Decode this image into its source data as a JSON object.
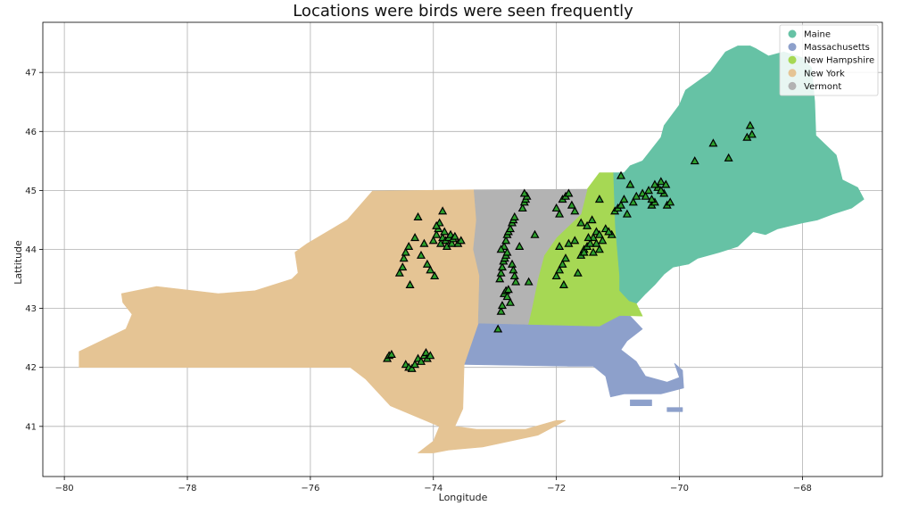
{
  "chart_data": {
    "type": "scatter",
    "title": "Locations were birds were seen frequently",
    "xlabel": "Longitude",
    "ylabel": "Lattitude",
    "xlim": [
      -80.35,
      -66.7
    ],
    "ylim": [
      40.15,
      47.85
    ],
    "xticks": [
      -80,
      -78,
      -76,
      -74,
      -72,
      -70,
      -68
    ],
    "yticks": [
      41,
      42,
      43,
      44,
      45,
      46,
      47
    ],
    "xtick_labels": [
      "−80",
      "−78",
      "−76",
      "−74",
      "−72",
      "−70",
      "−68"
    ],
    "ytick_labels": [
      "41",
      "42",
      "43",
      "44",
      "45",
      "46",
      "47"
    ],
    "grid": true,
    "legend_position": "top-right",
    "regions": [
      {
        "name": "Maine",
        "color": "#66c2a5",
        "polygons": [
          [
            [
              -71.08,
              45.3
            ],
            [
              -70.9,
              45.3
            ],
            [
              -70.8,
              45.42
            ],
            [
              -70.6,
              45.5
            ],
            [
              -70.3,
              45.9
            ],
            [
              -70.25,
              46.1
            ],
            [
              -70.0,
              46.45
            ],
            [
              -69.9,
              46.7
            ],
            [
              -69.5,
              47.0
            ],
            [
              -69.25,
              47.35
            ],
            [
              -69.05,
              47.45
            ],
            [
              -68.85,
              47.45
            ],
            [
              -68.75,
              47.4
            ],
            [
              -68.55,
              47.28
            ],
            [
              -68.3,
              47.35
            ],
            [
              -68.0,
              47.25
            ],
            [
              -67.85,
              47.08
            ],
            [
              -67.8,
              46.5
            ],
            [
              -67.78,
              45.93
            ],
            [
              -67.45,
              45.6
            ],
            [
              -67.35,
              45.18
            ],
            [
              -67.1,
              45.05
            ],
            [
              -67.0,
              44.85
            ],
            [
              -67.2,
              44.7
            ],
            [
              -67.5,
              44.6
            ],
            [
              -67.75,
              44.5
            ],
            [
              -68.0,
              44.45
            ],
            [
              -68.4,
              44.35
            ],
            [
              -68.6,
              44.25
            ],
            [
              -68.8,
              44.3
            ],
            [
              -69.05,
              44.05
            ],
            [
              -69.35,
              43.95
            ],
            [
              -69.7,
              43.85
            ],
            [
              -69.85,
              43.75
            ],
            [
              -70.1,
              43.7
            ],
            [
              -70.25,
              43.58
            ],
            [
              -70.4,
              43.4
            ],
            [
              -70.55,
              43.25
            ],
            [
              -70.7,
              43.08
            ],
            [
              -70.82,
              43.12
            ],
            [
              -70.98,
              43.3
            ],
            [
              -70.98,
              43.55
            ],
            [
              -71.05,
              44.4
            ],
            [
              -71.08,
              45.3
            ]
          ]
        ]
      },
      {
        "name": "Massachusetts",
        "color": "#8da0cb",
        "polygons": [
          [
            [
              -73.5,
              42.05
            ],
            [
              -73.27,
              42.75
            ],
            [
              -72.46,
              42.73
            ],
            [
              -71.3,
              42.7
            ],
            [
              -70.97,
              42.88
            ],
            [
              -70.8,
              42.87
            ],
            [
              -70.6,
              42.65
            ],
            [
              -70.85,
              42.45
            ],
            [
              -70.95,
              42.3
            ],
            [
              -70.7,
              42.1
            ],
            [
              -70.55,
              41.85
            ],
            [
              -70.2,
              41.75
            ],
            [
              -70.0,
              41.83
            ],
            [
              -70.08,
              42.07
            ],
            [
              -69.95,
              41.95
            ],
            [
              -69.93,
              41.65
            ],
            [
              -70.3,
              41.55
            ],
            [
              -70.63,
              41.55
            ],
            [
              -70.9,
              41.55
            ],
            [
              -71.12,
              41.5
            ],
            [
              -71.2,
              41.85
            ],
            [
              -71.4,
              42.02
            ],
            [
              -71.8,
              42.02
            ],
            [
              -73.5,
              42.05
            ]
          ]
        ]
      },
      {
        "name": "Massachusetts islands",
        "color": "#8da0cb",
        "polygons": [
          [
            [
              -70.8,
              41.35
            ],
            [
              -70.45,
              41.35
            ],
            [
              -70.45,
              41.45
            ],
            [
              -70.8,
              41.45
            ]
          ],
          [
            [
              -70.2,
              41.25
            ],
            [
              -69.95,
              41.25
            ],
            [
              -69.95,
              41.32
            ],
            [
              -70.2,
              41.32
            ]
          ]
        ]
      },
      {
        "name": "New Hampshire",
        "color": "#a6d854",
        "polygons": [
          [
            [
              -71.5,
              45.02
            ],
            [
              -71.3,
              45.3
            ],
            [
              -71.08,
              45.3
            ],
            [
              -71.05,
              44.4
            ],
            [
              -70.98,
              43.55
            ],
            [
              -70.98,
              43.3
            ],
            [
              -70.82,
              43.12
            ],
            [
              -70.7,
              43.08
            ],
            [
              -70.6,
              42.87
            ],
            [
              -70.97,
              42.88
            ],
            [
              -71.3,
              42.7
            ],
            [
              -72.46,
              42.73
            ],
            [
              -72.4,
              43.0
            ],
            [
              -72.3,
              43.5
            ],
            [
              -72.2,
              43.9
            ],
            [
              -72.0,
              44.2
            ],
            [
              -71.8,
              44.4
            ],
            [
              -71.6,
              44.6
            ],
            [
              -71.5,
              45.02
            ]
          ]
        ]
      },
      {
        "name": "New York",
        "color": "#e5c494",
        "polygons": [
          [
            [
              -79.76,
              42.0
            ],
            [
              -79.76,
              42.27
            ],
            [
              -79.0,
              42.65
            ],
            [
              -78.9,
              42.9
            ],
            [
              -79.05,
              43.1
            ],
            [
              -79.07,
              43.25
            ],
            [
              -78.5,
              43.37
            ],
            [
              -77.5,
              43.25
            ],
            [
              -76.9,
              43.3
            ],
            [
              -76.3,
              43.5
            ],
            [
              -76.2,
              43.6
            ],
            [
              -76.25,
              43.95
            ],
            [
              -76.05,
              44.1
            ],
            [
              -75.4,
              44.5
            ],
            [
              -74.99,
              44.99
            ],
            [
              -73.34,
              45.01
            ],
            [
              -73.3,
              44.5
            ],
            [
              -73.35,
              44.0
            ],
            [
              -73.25,
              43.55
            ],
            [
              -73.27,
              42.75
            ],
            [
              -73.5,
              42.05
            ],
            [
              -73.52,
              41.3
            ],
            [
              -73.65,
              41.0
            ],
            [
              -73.3,
              40.95
            ],
            [
              -72.5,
              40.95
            ],
            [
              -72.0,
              41.1
            ],
            [
              -71.85,
              41.1
            ],
            [
              -72.3,
              40.85
            ],
            [
              -73.2,
              40.65
            ],
            [
              -73.75,
              40.6
            ],
            [
              -74.0,
              40.55
            ],
            [
              -74.25,
              40.55
            ],
            [
              -74.0,
              40.75
            ],
            [
              -73.9,
              41.0
            ],
            [
              -74.7,
              41.35
            ],
            [
              -75.1,
              41.8
            ],
            [
              -75.35,
              42.0
            ],
            [
              -79.76,
              42.0
            ]
          ]
        ]
      },
      {
        "name": "Vermont",
        "color": "#b3b3b3",
        "polygons": [
          [
            [
              -73.34,
              45.01
            ],
            [
              -71.5,
              45.02
            ],
            [
              -71.6,
              44.6
            ],
            [
              -71.8,
              44.4
            ],
            [
              -72.0,
              44.2
            ],
            [
              -72.2,
              43.9
            ],
            [
              -72.3,
              43.5
            ],
            [
              -72.4,
              43.0
            ],
            [
              -72.46,
              42.73
            ],
            [
              -73.27,
              42.75
            ],
            [
              -73.25,
              43.55
            ],
            [
              -73.35,
              44.0
            ],
            [
              -73.3,
              44.5
            ],
            [
              -73.34,
              45.01
            ]
          ]
        ]
      }
    ],
    "legend": [
      {
        "label": "Maine",
        "color": "#66c2a5"
      },
      {
        "label": "Massachusetts",
        "color": "#8da0cb"
      },
      {
        "label": "New Hampshire",
        "color": "#a6d854"
      },
      {
        "label": "New York",
        "color": "#e5c494"
      },
      {
        "label": "Vermont",
        "color": "#b3b3b3"
      }
    ],
    "marker": {
      "shape": "triangle",
      "fill": "#2ca02c",
      "edge": "#000000"
    },
    "points": [
      [
        -74.75,
        42.15
      ],
      [
        -74.72,
        42.2
      ],
      [
        -74.68,
        42.22
      ],
      [
        -74.45,
        42.05
      ],
      [
        -74.4,
        42.0
      ],
      [
        -74.35,
        41.98
      ],
      [
        -74.3,
        42.05
      ],
      [
        -74.25,
        42.15
      ],
      [
        -74.2,
        42.1
      ],
      [
        -74.15,
        42.2
      ],
      [
        -74.12,
        42.25
      ],
      [
        -74.1,
        42.15
      ],
      [
        -74.05,
        42.2
      ],
      [
        -74.55,
        43.6
      ],
      [
        -74.5,
        43.7
      ],
      [
        -74.48,
        43.85
      ],
      [
        -74.45,
        43.95
      ],
      [
        -74.4,
        44.05
      ],
      [
        -74.38,
        43.4
      ],
      [
        -74.3,
        44.2
      ],
      [
        -74.25,
        44.55
      ],
      [
        -74.2,
        43.9
      ],
      [
        -74.15,
        44.1
      ],
      [
        -74.1,
        43.75
      ],
      [
        -74.05,
        43.65
      ],
      [
        -74.0,
        44.15
      ],
      [
        -73.98,
        43.55
      ],
      [
        -73.95,
        44.25
      ],
      [
        -73.92,
        44.35
      ],
      [
        -73.9,
        44.45
      ],
      [
        -73.88,
        44.1
      ],
      [
        -73.85,
        44.2
      ],
      [
        -73.82,
        44.3
      ],
      [
        -73.8,
        44.15
      ],
      [
        -73.78,
        44.05
      ],
      [
        -73.75,
        44.2
      ],
      [
        -73.72,
        44.25
      ],
      [
        -73.7,
        44.1
      ],
      [
        -73.68,
        44.18
      ],
      [
        -73.65,
        44.22
      ],
      [
        -73.6,
        44.1
      ],
      [
        -73.55,
        44.15
      ],
      [
        -73.85,
        44.65
      ],
      [
        -73.95,
        44.4
      ],
      [
        -72.95,
        42.65
      ],
      [
        -72.9,
        42.95
      ],
      [
        -72.88,
        43.05
      ],
      [
        -72.85,
        43.25
      ],
      [
        -72.82,
        43.3
      ],
      [
        -72.8,
        43.2
      ],
      [
        -72.78,
        43.32
      ],
      [
        -72.75,
        43.1
      ],
      [
        -72.92,
        43.5
      ],
      [
        -72.9,
        43.6
      ],
      [
        -72.88,
        43.7
      ],
      [
        -72.86,
        43.8
      ],
      [
        -72.84,
        43.85
      ],
      [
        -72.82,
        43.9
      ],
      [
        -72.8,
        43.95
      ],
      [
        -72.85,
        44.05
      ],
      [
        -72.82,
        44.15
      ],
      [
        -72.8,
        44.25
      ],
      [
        -72.78,
        44.3
      ],
      [
        -72.75,
        44.35
      ],
      [
        -72.72,
        44.45
      ],
      [
        -72.7,
        44.5
      ],
      [
        -72.68,
        44.55
      ],
      [
        -72.72,
        43.75
      ],
      [
        -72.7,
        43.65
      ],
      [
        -72.68,
        43.55
      ],
      [
        -72.66,
        43.45
      ],
      [
        -72.6,
        44.05
      ],
      [
        -72.55,
        44.7
      ],
      [
        -72.52,
        44.8
      ],
      [
        -72.5,
        44.85
      ],
      [
        -72.48,
        44.9
      ],
      [
        -72.52,
        44.95
      ],
      [
        -72.45,
        43.45
      ],
      [
        -72.9,
        44.0
      ],
      [
        -72.35,
        44.25
      ],
      [
        -72.0,
        44.7
      ],
      [
        -71.95,
        44.6
      ],
      [
        -71.9,
        44.85
      ],
      [
        -71.85,
        44.9
      ],
      [
        -71.8,
        44.95
      ],
      [
        -71.75,
        44.75
      ],
      [
        -71.7,
        44.65
      ],
      [
        -71.85,
        43.85
      ],
      [
        -71.9,
        43.75
      ],
      [
        -71.95,
        43.65
      ],
      [
        -72.0,
        43.55
      ],
      [
        -71.88,
        43.4
      ],
      [
        -71.6,
        43.9
      ],
      [
        -71.55,
        44.0
      ],
      [
        -71.5,
        44.05
      ],
      [
        -71.45,
        44.1
      ],
      [
        -71.4,
        44.2
      ],
      [
        -71.35,
        44.3
      ],
      [
        -71.3,
        44.25
      ],
      [
        -71.25,
        44.15
      ],
      [
        -71.2,
        44.35
      ],
      [
        -71.5,
        44.4
      ],
      [
        -71.6,
        44.45
      ],
      [
        -71.65,
        43.6
      ],
      [
        -71.55,
        43.95
      ],
      [
        -71.48,
        44.2
      ],
      [
        -71.42,
        44.5
      ],
      [
        -71.3,
        44.85
      ],
      [
        -71.1,
        44.25
      ],
      [
        -71.15,
        44.3
      ],
      [
        -71.7,
        44.15
      ],
      [
        -71.8,
        44.1
      ],
      [
        -71.95,
        44.05
      ],
      [
        -71.3,
        44.0
      ],
      [
        -71.4,
        43.95
      ],
      [
        -71.35,
        44.1
      ],
      [
        -71.05,
        44.65
      ],
      [
        -71.0,
        44.7
      ],
      [
        -70.95,
        44.75
      ],
      [
        -70.9,
        44.85
      ],
      [
        -70.85,
        44.6
      ],
      [
        -70.8,
        45.1
      ],
      [
        -70.75,
        44.8
      ],
      [
        -70.7,
        44.9
      ],
      [
        -70.6,
        44.95
      ],
      [
        -70.5,
        45.0
      ],
      [
        -70.45,
        44.75
      ],
      [
        -70.4,
        44.8
      ],
      [
        -70.35,
        45.05
      ],
      [
        -70.3,
        45.15
      ],
      [
        -70.25,
        44.95
      ],
      [
        -70.22,
        45.1
      ],
      [
        -70.2,
        44.75
      ],
      [
        -70.15,
        44.8
      ],
      [
        -70.45,
        44.85
      ],
      [
        -70.55,
        44.9
      ],
      [
        -70.95,
        45.25
      ],
      [
        -70.4,
        45.1
      ],
      [
        -70.3,
        45.0
      ],
      [
        -69.75,
        45.5
      ],
      [
        -69.45,
        45.8
      ],
      [
        -69.2,
        45.55
      ],
      [
        -68.9,
        45.9
      ],
      [
        -68.85,
        46.1
      ],
      [
        -68.82,
        45.95
      ]
    ]
  }
}
